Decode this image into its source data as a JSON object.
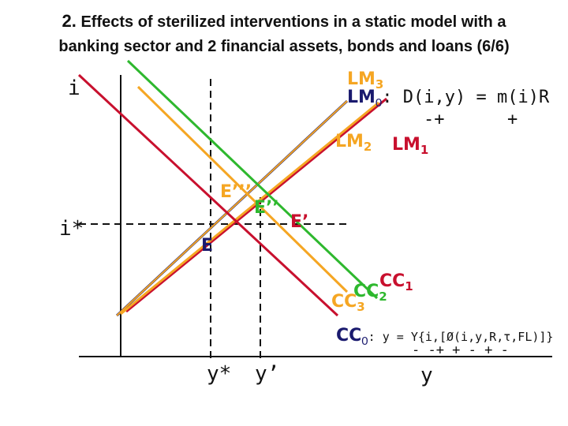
{
  "title": {
    "number": "2.",
    "line1": "Effects of sterilized interventions in a static model with a",
    "line2": "banking sector and 2 financial assets, bonds and loans (6/6)"
  },
  "axes": {
    "y_label": "i",
    "x_label": "y",
    "i_star": "i*",
    "y_star": "y*",
    "y_prime": "y’"
  },
  "curves": {
    "LM3": {
      "base": "LM",
      "sub": "3",
      "color": "#f5a623"
    },
    "LM0": {
      "base": "LM",
      "sub": "0",
      "eq": ": D(i,y) = m(i)R",
      "color": "#1a1a6e"
    },
    "LM0_signs": "-+      +",
    "LM2": {
      "base": "LM",
      "sub": "2",
      "color": "#f5a623"
    },
    "LM1": {
      "base": "LM",
      "sub": "1",
      "color": "#c8102e"
    },
    "CC1": {
      "base": "CC",
      "sub": "1",
      "color": "#c8102e"
    },
    "CC2": {
      "base": "CC",
      "sub": "2",
      "color": "#2eb82e"
    },
    "CC3": {
      "base": "CC",
      "sub": "3",
      "color": "#f5a623"
    },
    "CC0": {
      "base": "CC",
      "sub": "0",
      "eq": ": y = Y{i,[Ø(i,y,R,τ,FL)]}",
      "color": "#1a1a6e"
    },
    "CC0_signs": "- -+ + - + -"
  },
  "points": {
    "E": "E",
    "E_prime": "E’",
    "E_dprime": "E’’",
    "E_tprime": "E’’’"
  },
  "colors": {
    "navy": "#1a1a6e",
    "red": "#c8102e",
    "green": "#2eb82e",
    "orange": "#f5a623",
    "black": "#111111"
  }
}
